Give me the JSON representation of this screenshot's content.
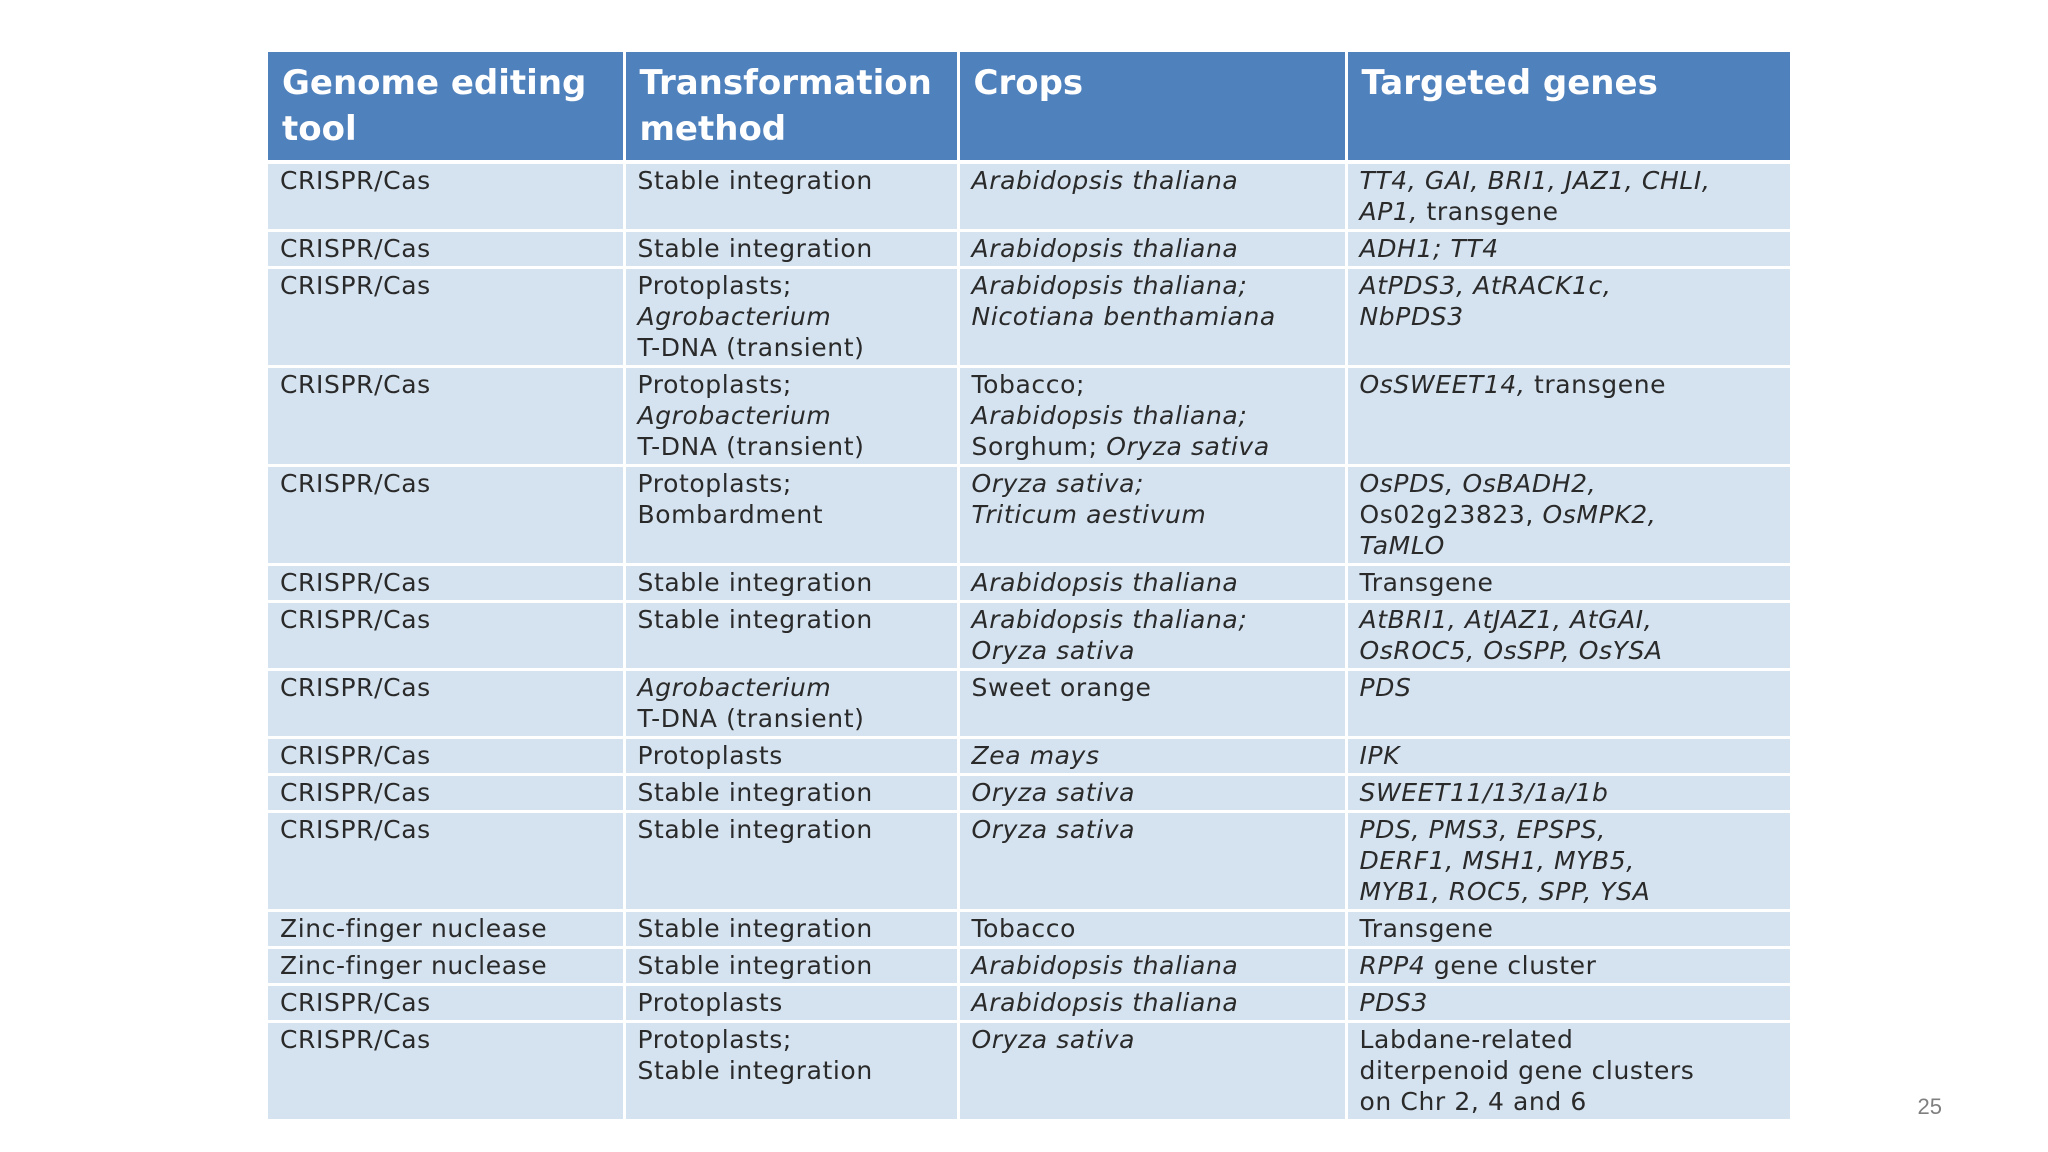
{
  "table": {
    "headers": [
      "Genome editing\ntool",
      "Transformation\nmethod",
      "Crops",
      "Targeted genes"
    ],
    "rows": [
      [
        "CRISPR/Cas",
        "Stable integration",
        "Arabidopsis thaliana",
        "TT4, GAI, BRI1, JAZ1, CHLI,\nAP1, transgene"
      ],
      [
        "CRISPR/Cas",
        "Stable integration",
        "Arabidopsis thaliana",
        "ADH1; TT4"
      ],
      [
        "CRISPR/Cas",
        "Protoplasts;\nAgrobacterium\nT-DNA (transient)",
        "Arabidopsis thaliana;\nNicotiana benthamiana",
        "AtPDS3, AtRACK1c,\nNbPDS3"
      ],
      [
        "CRISPR/Cas",
        "Protoplasts;\nAgrobacterium\nT-DNA (transient)",
        "Tobacco;\nArabidopsis thaliana;\nSorghum; Oryza sativa",
        "OsSWEET14, transgene"
      ],
      [
        "CRISPR/Cas",
        "Protoplasts;\nBombardment",
        "Oryza sativa;\nTriticum aestivum",
        "OsPDS, OsBADH2,\nOs02g23823, OsMPK2,\nTaMLO"
      ],
      [
        "CRISPR/Cas",
        "Stable integration",
        "Arabidopsis thaliana",
        "Transgene"
      ],
      [
        "CRISPR/Cas",
        "Stable integration",
        "Arabidopsis thaliana;\nOryza sativa",
        "AtBRI1, AtJAZ1, AtGAI,\nOsROC5, OsSPP, OsYSA"
      ],
      [
        "CRISPR/Cas",
        "Agrobacterium\nT-DNA (transient)",
        "Sweet orange",
        "PDS"
      ],
      [
        "CRISPR/Cas",
        "Protoplasts",
        "Zea mays",
        "IPK"
      ],
      [
        "CRISPR/Cas",
        "Stable integration",
        "Oryza sativa",
        "SWEET11/13/1a/1b"
      ],
      [
        "CRISPR/Cas",
        "Stable integration",
        "Oryza sativa",
        "PDS, PMS3, EPSPS,\nDERF1, MSH1, MYB5,\nMYB1, ROC5, SPP, YSA"
      ],
      [
        "Zinc-finger nuclease",
        "Stable integration",
        "Tobacco",
        "Transgene"
      ],
      [
        "Zinc-finger nuclease",
        "Stable integration",
        "Arabidopsis thaliana",
        "RPP4 gene cluster"
      ],
      [
        "CRISPR/Cas",
        "Protoplasts",
        "Arabidopsis thaliana",
        "PDS3"
      ],
      [
        "CRISPR/Cas",
        "Protoplasts;\nStable integration",
        "Oryza sativa",
        "Labdane-related\nditerpenoid gene clusters\non Chr 2, 4 and 6"
      ]
    ]
  },
  "page_number": "25",
  "colors": {
    "header_bg": "#4f81bd",
    "cell_bg": "#d5e3f0"
  }
}
